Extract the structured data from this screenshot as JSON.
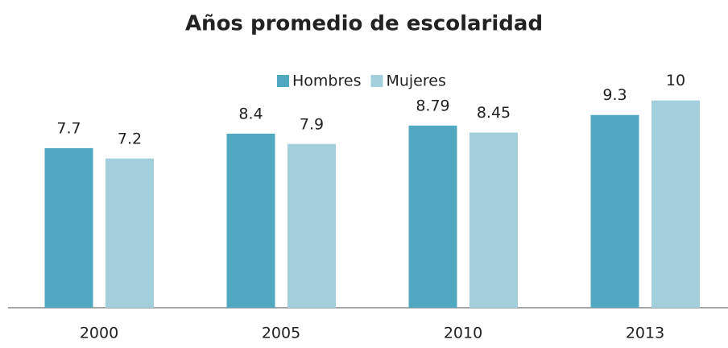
{
  "chart_data": {
    "type": "bar",
    "title": "Años promedio de escolaridad",
    "categories": [
      "2000",
      "2005",
      "2010",
      "2013"
    ],
    "series": [
      {
        "name": "Hombres",
        "color": "#4fa8bf",
        "values": [
          7.7,
          8.4,
          8.79,
          9.3
        ]
      },
      {
        "name": "Mujeres",
        "color": "#a3cfdc",
        "values": [
          7.2,
          7.9,
          8.45,
          10
        ]
      }
    ],
    "ylim": [
      0,
      11
    ],
    "legend": "top"
  }
}
